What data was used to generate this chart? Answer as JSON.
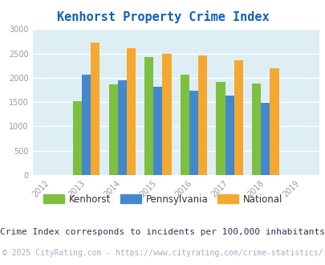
{
  "title": "Kenhorst Property Crime Index",
  "title_color": "#1060c0",
  "years": [
    2013,
    2014,
    2015,
    2016,
    2017,
    2018
  ],
  "kenhorst": [
    1520,
    1870,
    2420,
    2070,
    1910,
    1880
  ],
  "pennsylvania": [
    2070,
    1950,
    1820,
    1730,
    1630,
    1490
  ],
  "national": [
    2730,
    2600,
    2500,
    2460,
    2360,
    2190
  ],
  "kenhorst_color": "#7dc040",
  "pennsylvania_color": "#4488cc",
  "national_color": "#f5a830",
  "xlim": [
    2011.5,
    2019.5
  ],
  "ylim": [
    0,
    3000
  ],
  "yticks": [
    0,
    500,
    1000,
    1500,
    2000,
    2500,
    3000
  ],
  "xticks": [
    2012,
    2013,
    2014,
    2015,
    2016,
    2017,
    2018,
    2019
  ],
  "bar_width": 0.25,
  "background_color": "#deeef5",
  "grid_color": "#ffffff",
  "legend_labels": [
    "Kenhorst",
    "Pennsylvania",
    "National"
  ],
  "note_text": "Crime Index corresponds to incidents per 100,000 inhabitants",
  "note_color": "#333355",
  "copyright_text": "© 2025 CityRating.com - https://www.cityrating.com/crime-statistics/",
  "copyright_color": "#aaaacc",
  "tick_label_color": "#999999",
  "note_fontsize": 8,
  "copyright_fontsize": 7,
  "title_fontsize": 11
}
